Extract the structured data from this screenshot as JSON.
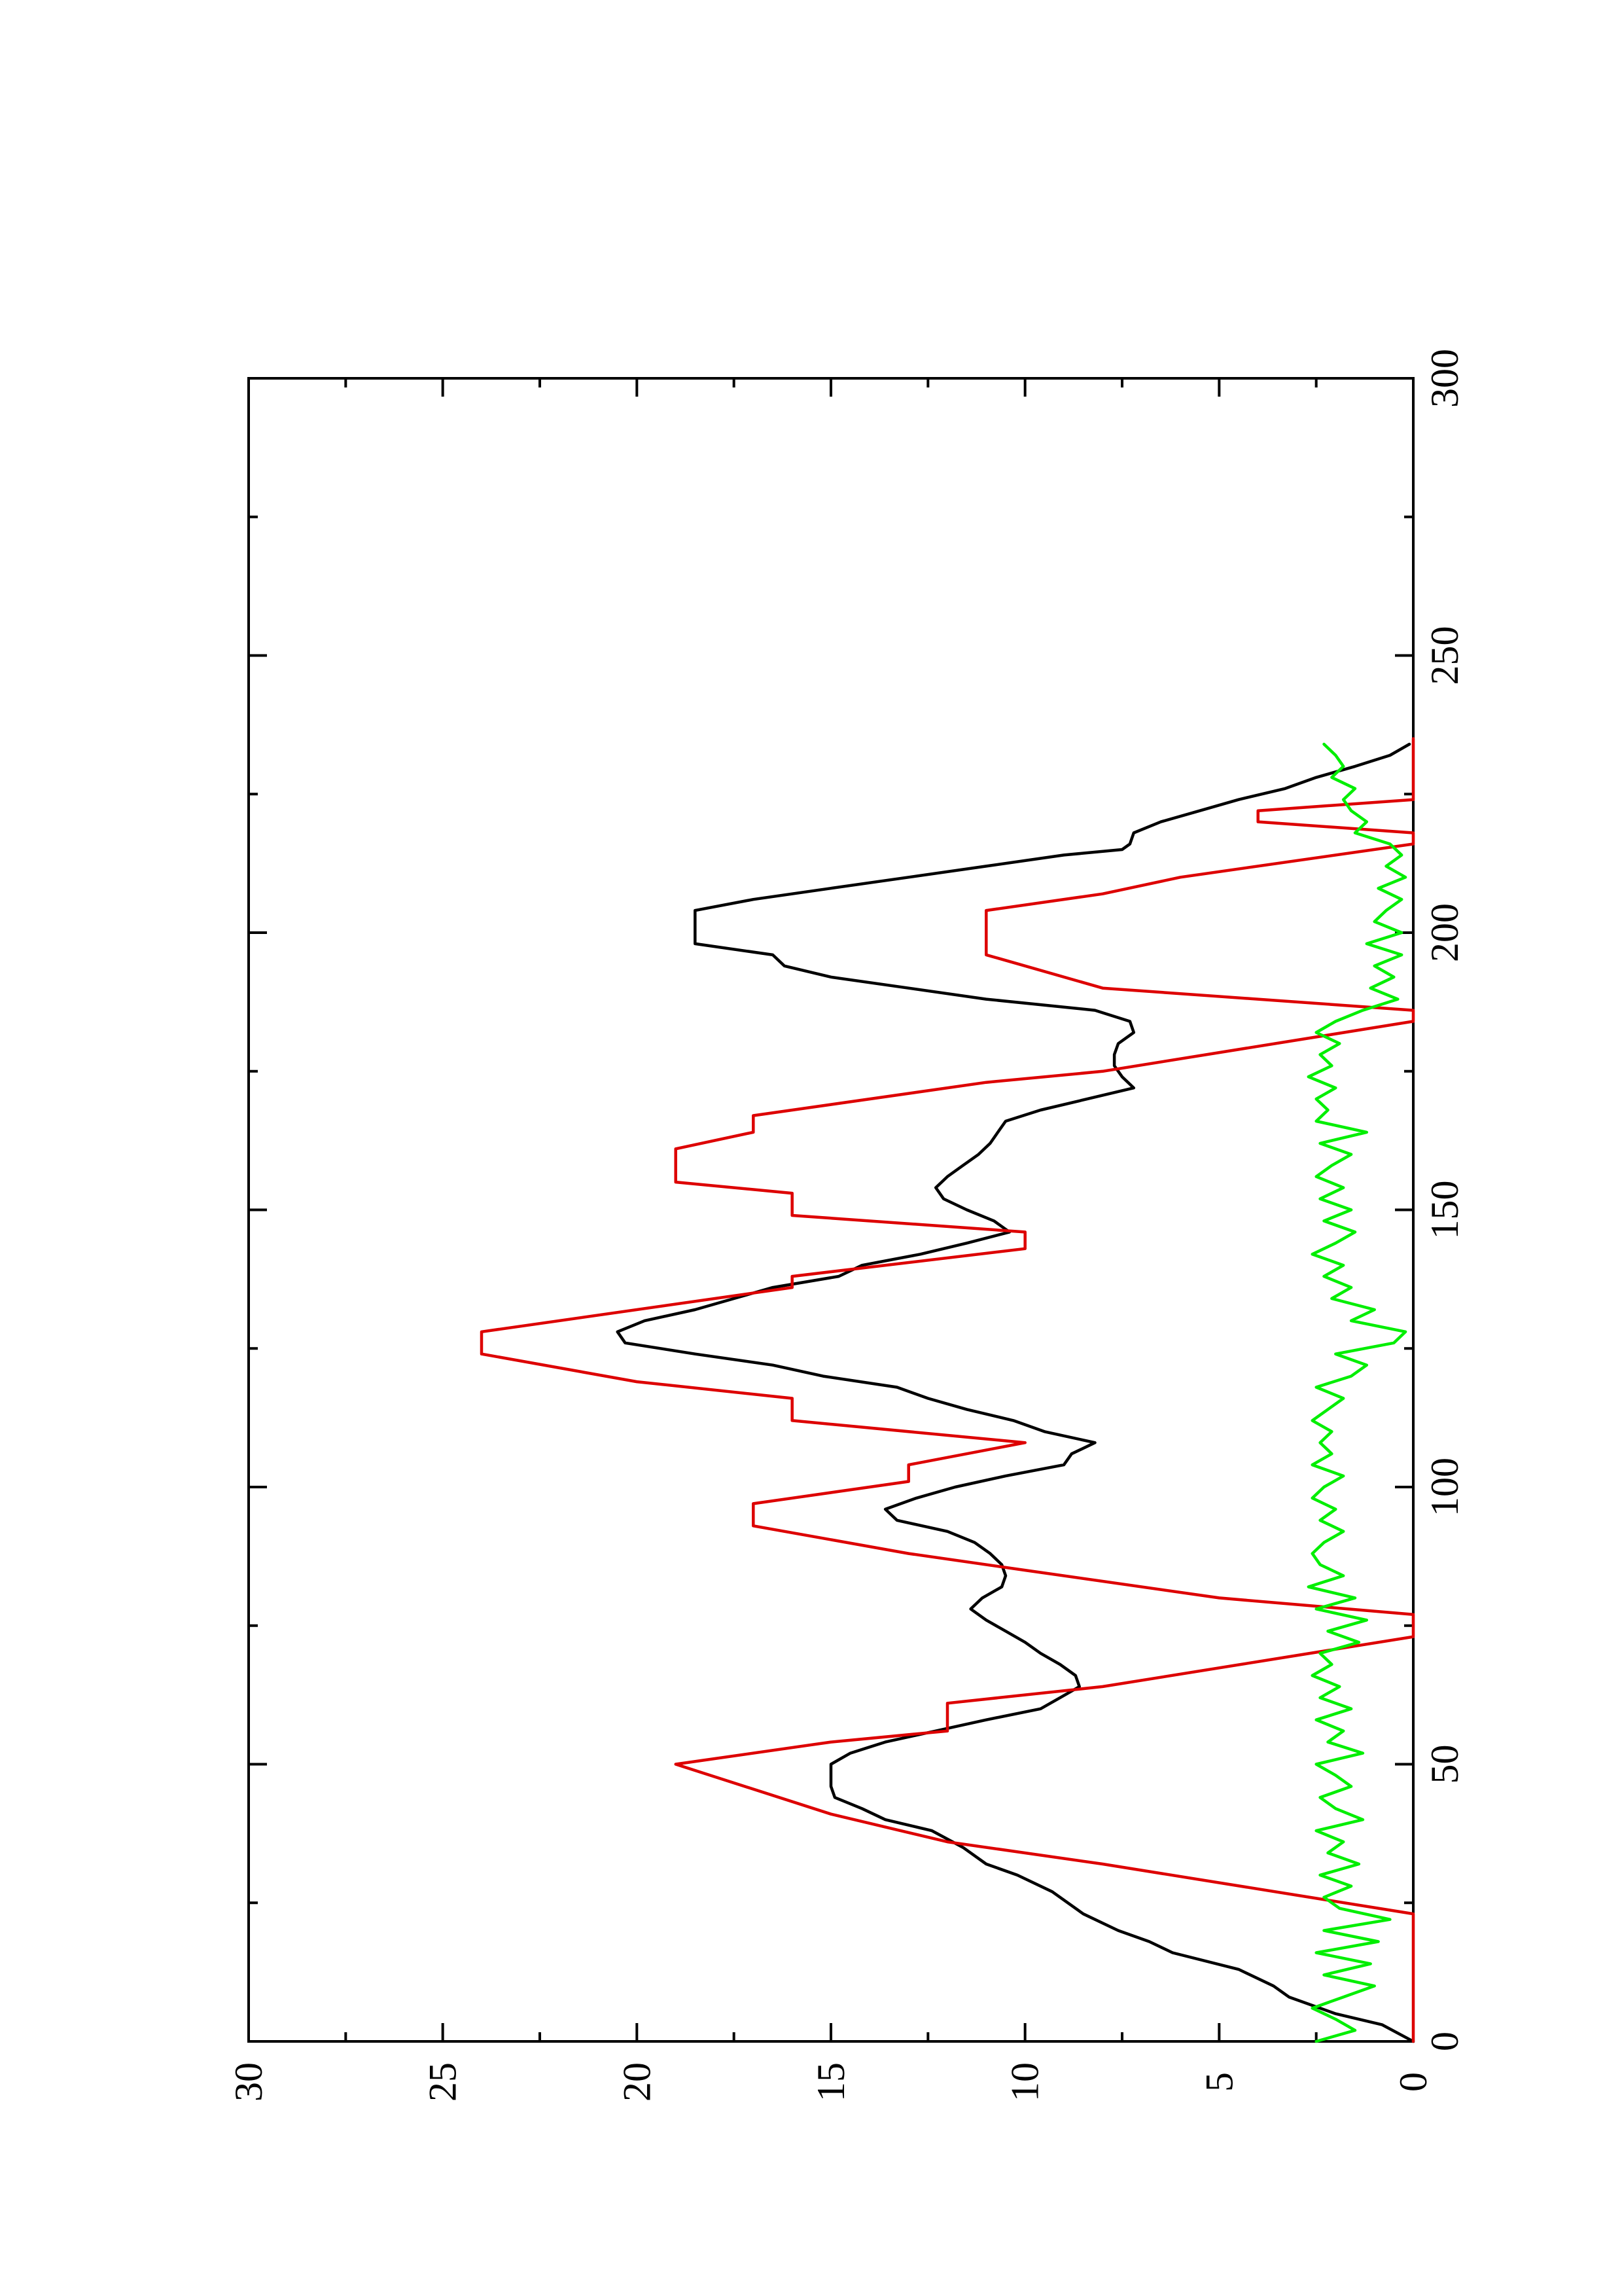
{
  "chart_data": {
    "type": "line",
    "orientation": "rotated-90-ccw",
    "title": "",
    "xlabel": "",
    "ylabel": "",
    "xlim": [
      0,
      300
    ],
    "ylim": [
      0,
      30
    ],
    "xticks": [
      0,
      50,
      100,
      150,
      200,
      250,
      300
    ],
    "yticks": [
      0,
      5,
      10,
      15,
      20,
      25,
      30
    ],
    "x_minor_step": 25,
    "y_minor_step": 2.5,
    "grid": false,
    "legend": "none",
    "series": [
      {
        "color": "#000000",
        "points": [
          [
            0,
            0
          ],
          [
            3,
            0.8
          ],
          [
            5,
            2
          ],
          [
            8,
            3.2
          ],
          [
            10,
            3.6
          ],
          [
            13,
            4.5
          ],
          [
            16,
            6.2
          ],
          [
            18,
            6.8
          ],
          [
            20,
            7.6
          ],
          [
            23,
            8.5
          ],
          [
            27,
            9.3
          ],
          [
            30,
            10.2
          ],
          [
            32,
            11
          ],
          [
            35,
            11.6
          ],
          [
            38,
            12.4
          ],
          [
            40,
            13.6
          ],
          [
            42,
            14.2
          ],
          [
            44,
            14.9
          ],
          [
            46,
            15
          ],
          [
            48,
            15
          ],
          [
            50,
            15
          ],
          [
            52,
            14.5
          ],
          [
            54,
            13.6
          ],
          [
            56,
            12.3
          ],
          [
            58,
            11
          ],
          [
            60,
            9.6
          ],
          [
            62,
            9.1
          ],
          [
            64,
            8.6
          ],
          [
            66,
            8.7
          ],
          [
            68,
            9.1
          ],
          [
            70,
            9.6
          ],
          [
            72,
            10
          ],
          [
            74,
            10.5
          ],
          [
            76,
            11
          ],
          [
            78,
            11.4
          ],
          [
            80,
            11.1
          ],
          [
            82,
            10.6
          ],
          [
            84,
            10.5
          ],
          [
            86,
            10.6
          ],
          [
            88,
            10.9
          ],
          [
            90,
            11.3
          ],
          [
            92,
            12
          ],
          [
            94,
            13.3
          ],
          [
            96,
            13.6
          ],
          [
            98,
            12.8
          ],
          [
            100,
            11.8
          ],
          [
            102,
            10.5
          ],
          [
            104,
            9
          ],
          [
            106,
            8.8
          ],
          [
            108,
            8.2
          ],
          [
            110,
            9.5
          ],
          [
            112,
            10.3
          ],
          [
            114,
            11.5
          ],
          [
            116,
            12.5
          ],
          [
            118,
            13.3
          ],
          [
            120,
            15.2
          ],
          [
            122,
            16.5
          ],
          [
            124,
            18.5
          ],
          [
            126,
            20.3
          ],
          [
            128,
            20.5
          ],
          [
            130,
            19.8
          ],
          [
            132,
            18.5
          ],
          [
            134,
            17.5
          ],
          [
            136,
            16.5
          ],
          [
            138,
            14.8
          ],
          [
            140,
            14.2
          ],
          [
            142,
            12.7
          ],
          [
            144,
            11.5
          ],
          [
            146,
            10.4
          ],
          [
            148,
            10.8
          ],
          [
            150,
            11.5
          ],
          [
            152,
            12.1
          ],
          [
            154,
            12.3
          ],
          [
            156,
            12
          ],
          [
            158,
            11.6
          ],
          [
            160,
            11.2
          ],
          [
            162,
            10.9
          ],
          [
            164,
            10.7
          ],
          [
            166,
            10.5
          ],
          [
            168,
            9.6
          ],
          [
            170,
            8.4
          ],
          [
            172,
            7.2
          ],
          [
            174,
            7.5
          ],
          [
            176,
            7.7
          ],
          [
            178,
            7.7
          ],
          [
            180,
            7.6
          ],
          [
            182,
            7.2
          ],
          [
            184,
            7.3
          ],
          [
            186,
            8.2
          ],
          [
            188,
            11
          ],
          [
            190,
            13
          ],
          [
            192,
            15
          ],
          [
            194,
            16.2
          ],
          [
            196,
            16.5
          ],
          [
            198,
            18.5
          ],
          [
            200,
            18.5
          ],
          [
            204,
            18.5
          ],
          [
            206,
            17
          ],
          [
            208,
            15
          ],
          [
            210,
            13
          ],
          [
            212,
            11
          ],
          [
            214,
            9
          ],
          [
            215,
            7.5
          ],
          [
            216,
            7.3
          ],
          [
            218,
            7.2
          ],
          [
            220,
            6.5
          ],
          [
            222,
            5.5
          ],
          [
            224,
            4.5
          ],
          [
            226,
            3.3
          ],
          [
            228,
            2.5
          ],
          [
            230,
            1.5
          ],
          [
            232,
            0.6
          ],
          [
            234,
            0.1
          ]
        ]
      },
      {
        "color": "#dd0000",
        "points": [
          [
            0,
            0
          ],
          [
            23,
            0
          ],
          [
            32,
            8
          ],
          [
            36,
            12
          ],
          [
            41,
            15
          ],
          [
            50,
            19
          ],
          [
            54,
            15
          ],
          [
            56,
            12
          ],
          [
            61,
            12
          ],
          [
            64,
            8
          ],
          [
            73,
            0
          ],
          [
            77,
            0
          ],
          [
            80,
            5
          ],
          [
            85,
            10
          ],
          [
            88,
            13
          ],
          [
            93,
            17
          ],
          [
            97,
            17
          ],
          [
            101,
            13
          ],
          [
            104,
            13
          ],
          [
            108,
            10
          ],
          [
            112,
            16
          ],
          [
            116,
            16
          ],
          [
            119,
            20
          ],
          [
            124,
            24
          ],
          [
            128,
            24
          ],
          [
            136,
            16
          ],
          [
            138,
            16
          ],
          [
            143,
            10
          ],
          [
            146,
            10
          ],
          [
            149,
            16
          ],
          [
            153,
            16
          ],
          [
            155,
            19
          ],
          [
            161,
            19
          ],
          [
            164,
            17
          ],
          [
            167,
            17
          ],
          [
            173,
            11
          ],
          [
            175,
            8
          ],
          [
            184,
            0
          ],
          [
            186,
            0
          ],
          [
            190,
            8
          ],
          [
            194,
            10
          ],
          [
            196,
            11
          ],
          [
            204,
            11
          ],
          [
            207,
            8
          ],
          [
            210,
            6
          ],
          [
            216,
            0
          ],
          [
            218,
            0
          ],
          [
            220,
            4
          ],
          [
            222,
            4
          ],
          [
            224,
            0
          ],
          [
            235,
            0
          ]
        ]
      },
      {
        "color": "#00ee00",
        "points": [
          [
            0,
            2.5
          ],
          [
            2,
            1.5
          ],
          [
            4,
            2
          ],
          [
            6,
            2.6
          ],
          [
            8,
            1.8
          ],
          [
            10,
            1
          ],
          [
            12,
            2.3
          ],
          [
            14,
            1.1
          ],
          [
            16,
            2.5
          ],
          [
            18,
            0.9
          ],
          [
            20,
            2.3
          ],
          [
            22,
            0.6
          ],
          [
            24,
            1.9
          ],
          [
            26,
            2.3
          ],
          [
            28,
            1.6
          ],
          [
            30,
            2.4
          ],
          [
            32,
            1.4
          ],
          [
            34,
            2.2
          ],
          [
            36,
            1.8
          ],
          [
            38,
            2.5
          ],
          [
            40,
            1.3
          ],
          [
            42,
            2
          ],
          [
            44,
            2.4
          ],
          [
            46,
            1.6
          ],
          [
            48,
            2
          ],
          [
            50,
            2.5
          ],
          [
            52,
            1.3
          ],
          [
            54,
            2.2
          ],
          [
            56,
            1.8
          ],
          [
            58,
            2.5
          ],
          [
            60,
            1.6
          ],
          [
            62,
            2.4
          ],
          [
            64,
            1.9
          ],
          [
            66,
            2.6
          ],
          [
            68,
            2.1
          ],
          [
            70,
            2.4
          ],
          [
            72,
            1.4
          ],
          [
            74,
            2.2
          ],
          [
            76,
            1.2
          ],
          [
            78,
            2.5
          ],
          [
            80,
            1.5
          ],
          [
            82,
            2.7
          ],
          [
            84,
            1.8
          ],
          [
            86,
            2.4
          ],
          [
            88,
            2.6
          ],
          [
            90,
            2.3
          ],
          [
            92,
            1.8
          ],
          [
            94,
            2.4
          ],
          [
            96,
            2
          ],
          [
            98,
            2.6
          ],
          [
            100,
            2.3
          ],
          [
            102,
            1.8
          ],
          [
            104,
            2.6
          ],
          [
            106,
            2.1
          ],
          [
            108,
            2.4
          ],
          [
            110,
            2.1
          ],
          [
            112,
            2.6
          ],
          [
            114,
            2.2
          ],
          [
            116,
            1.8
          ],
          [
            118,
            2.5
          ],
          [
            120,
            1.6
          ],
          [
            122,
            1.2
          ],
          [
            124,
            2
          ],
          [
            126,
            0.5
          ],
          [
            128,
            0.2
          ],
          [
            130,
            1.6
          ],
          [
            132,
            1
          ],
          [
            134,
            2.1
          ],
          [
            136,
            1.6
          ],
          [
            138,
            2.3
          ],
          [
            140,
            1.8
          ],
          [
            142,
            2.6
          ],
          [
            144,
            2
          ],
          [
            146,
            1.5
          ],
          [
            148,
            2.3
          ],
          [
            150,
            1.6
          ],
          [
            152,
            2.4
          ],
          [
            154,
            1.8
          ],
          [
            156,
            2.5
          ],
          [
            158,
            2.1
          ],
          [
            160,
            1.6
          ],
          [
            162,
            2.4
          ],
          [
            164,
            1.2
          ],
          [
            166,
            2.5
          ],
          [
            168,
            2.2
          ],
          [
            170,
            2.5
          ],
          [
            172,
            2
          ],
          [
            174,
            2.7
          ],
          [
            176,
            2.1
          ],
          [
            178,
            2.4
          ],
          [
            180,
            1.9
          ],
          [
            182,
            2.5
          ],
          [
            184,
            2
          ],
          [
            186,
            1.3
          ],
          [
            188,
            0.4
          ],
          [
            190,
            1.1
          ],
          [
            192,
            0.5
          ],
          [
            194,
            1
          ],
          [
            196,
            0.3
          ],
          [
            198,
            1.2
          ],
          [
            200,
            0.3
          ],
          [
            202,
            1
          ],
          [
            204,
            0.7
          ],
          [
            206,
            0.3
          ],
          [
            208,
            0.9
          ],
          [
            210,
            0.2
          ],
          [
            212,
            0.7
          ],
          [
            214,
            0.3
          ],
          [
            216,
            0.6
          ],
          [
            218,
            1.5
          ],
          [
            220,
            1.2
          ],
          [
            222,
            1.6
          ],
          [
            224,
            1.8
          ],
          [
            226,
            1.5
          ],
          [
            228,
            2.1
          ],
          [
            230,
            1.8
          ],
          [
            232,
            2
          ],
          [
            234,
            2.3
          ]
        ]
      }
    ]
  }
}
